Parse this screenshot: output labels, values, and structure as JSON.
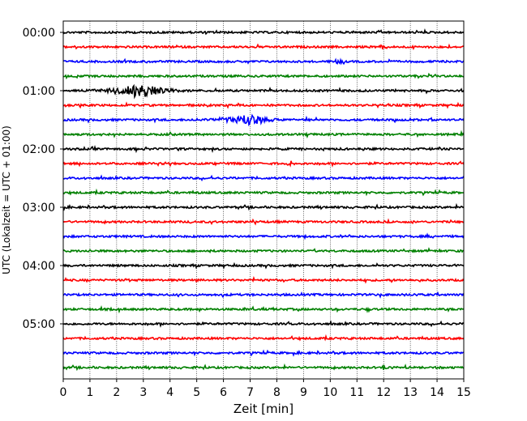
{
  "chart_data": {
    "type": "line",
    "title": "",
    "xlabel": "Zeit  [min]",
    "ylabel": "UTC (Lokalzeit = UTC + 01:00)",
    "xlim": [
      0,
      15
    ],
    "x_ticks": [
      "0",
      "1",
      "2",
      "3",
      "4",
      "5",
      "6",
      "7",
      "8",
      "9",
      "10",
      "11",
      "12",
      "13",
      "14",
      "15"
    ],
    "y_ticks": [
      "00:00",
      "01:00",
      "02:00",
      "03:00",
      "04:00",
      "05:00"
    ],
    "trace_interval_min": 15,
    "trace_count": 24,
    "grid": "vertical dotted at each minute",
    "trace_colors": [
      "#000000",
      "#ff0000",
      "#0000ff",
      "#008000"
    ],
    "events": [
      {
        "trace": 4,
        "start_min": 0.5,
        "peak_min": 3.0,
        "end_min": 4.8,
        "amplitude": 9
      },
      {
        "trace": 6,
        "start_min": 4.8,
        "peak_min": 7.0,
        "end_min": 8.3,
        "amplitude": 7
      },
      {
        "trace": 1,
        "start_min": 11.7,
        "peak_min": 12.0,
        "end_min": 12.3,
        "amplitude": 3
      },
      {
        "trace": 2,
        "start_min": 10.0,
        "peak_min": 10.3,
        "end_min": 10.6,
        "amplitude": 3
      },
      {
        "trace": 9,
        "start_min": 8.3,
        "peak_min": 8.5,
        "end_min": 8.7,
        "amplitude": 4
      },
      {
        "trace": 23,
        "start_min": 11.8,
        "peak_min": 12.0,
        "end_min": 12.2,
        "amplitude": 3
      }
    ]
  }
}
